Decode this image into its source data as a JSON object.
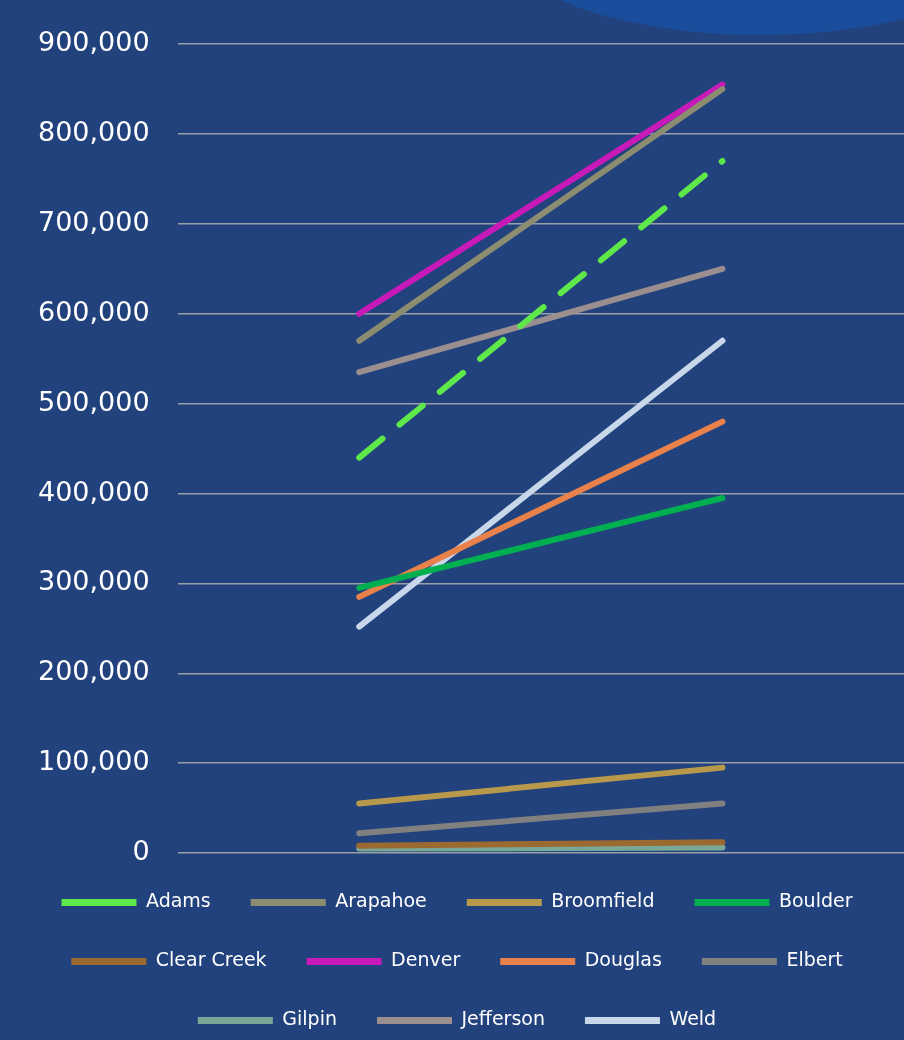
{
  "chart_data": {
    "type": "line",
    "categories": [
      null,
      null
    ],
    "ylim": [
      0,
      900000
    ],
    "yticks": [
      0,
      {
        "value": 100000,
        "label": "100,000"
      },
      {
        "value": 200000,
        "label": "200,000"
      },
      {
        "value": 300000,
        "label": "300,000"
      },
      {
        "value": 400000,
        "label": "400,000"
      },
      {
        "value": 500000,
        "label": "500,000"
      },
      {
        "value": 600000,
        "label": "600,000"
      },
      {
        "value": 700000,
        "label": "700,000"
      },
      {
        "value": 800000,
        "label": "800,000"
      },
      {
        "value": 900000,
        "label": "900,000"
      }
    ],
    "grid": "y",
    "tick_labels": "y",
    "legend": "bottom",
    "marker": "none",
    "series": [
      {
        "name": "Adams",
        "color": "#5ee84a",
        "values": [
          440000,
          770000
        ],
        "line_style": "dashed"
      },
      {
        "name": "Arapahoe",
        "color": "#8c8c70",
        "values": [
          570000,
          850000
        ]
      },
      {
        "name": "Broomfield",
        "color": "#b8984a",
        "values": [
          55000,
          95000
        ]
      },
      {
        "name": "Boulder",
        "color": "#00b050",
        "values": [
          295000,
          395000
        ]
      },
      {
        "name": "Clear Creek",
        "color": "#9a6a30",
        "values": [
          8000,
          12000
        ]
      },
      {
        "name": "Denver",
        "color": "#c71ab8",
        "values": [
          600000,
          855000
        ]
      },
      {
        "name": "Douglas",
        "color": "#e8824a",
        "values": [
          285000,
          480000
        ]
      },
      {
        "name": "Elbert",
        "color": "#808080",
        "values": [
          22000,
          55000
        ]
      },
      {
        "name": "Gilpin",
        "color": "#7aa898",
        "values": [
          5000,
          6000
        ]
      },
      {
        "name": "Jefferson",
        "color": "#9a8e8e",
        "values": [
          535000,
          650000
        ]
      },
      {
        "name": "Weld",
        "color": "#c8d8ea",
        "values": [
          252000,
          570000
        ]
      }
    ]
  }
}
